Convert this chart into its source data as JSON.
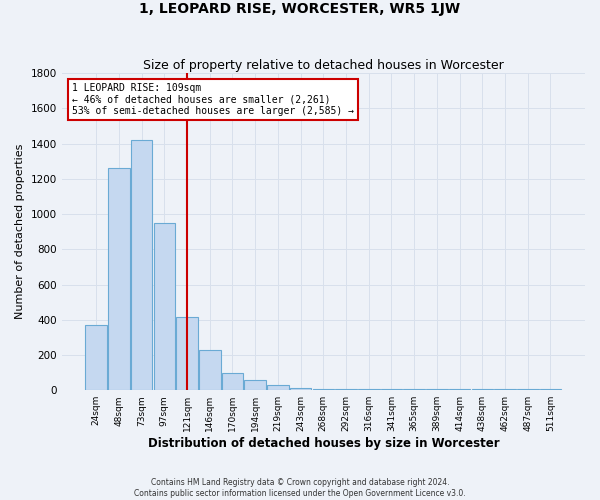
{
  "title": "1, LEOPARD RISE, WORCESTER, WR5 1JW",
  "subtitle": "Size of property relative to detached houses in Worcester",
  "xlabel": "Distribution of detached houses by size in Worcester",
  "ylabel": "Number of detached properties",
  "footnote": "Contains HM Land Registry data © Crown copyright and database right 2024.\nContains public sector information licensed under the Open Government Licence v3.0.",
  "categories": [
    "24sqm",
    "48sqm",
    "73sqm",
    "97sqm",
    "121sqm",
    "146sqm",
    "170sqm",
    "194sqm",
    "219sqm",
    "243sqm",
    "268sqm",
    "292sqm",
    "316sqm",
    "341sqm",
    "365sqm",
    "389sqm",
    "414sqm",
    "438sqm",
    "462sqm",
    "487sqm",
    "511sqm"
  ],
  "values": [
    370,
    1260,
    1420,
    950,
    415,
    230,
    100,
    60,
    30,
    12,
    5,
    5,
    5,
    5,
    5,
    5,
    5,
    5,
    5,
    5,
    5
  ],
  "bar_color": "#c5d8f0",
  "bar_edge_color": "#6aaad4",
  "marker_bin_index": 4,
  "annotation_title": "1 LEOPARD RISE: 109sqm",
  "annotation_line1": "← 46% of detached houses are smaller (2,261)",
  "annotation_line2": "53% of semi-detached houses are larger (2,585) →",
  "annotation_box_color": "#ffffff",
  "annotation_box_edge": "#cc0000",
  "vertical_line_color": "#cc0000",
  "ylim": [
    0,
    1800
  ],
  "yticks": [
    0,
    200,
    400,
    600,
    800,
    1000,
    1200,
    1400,
    1600,
    1800
  ],
  "background_color": "#eef2f8",
  "grid_color": "#d8e0ec",
  "title_fontsize": 10,
  "subtitle_fontsize": 9,
  "xlabel_fontsize": 8.5,
  "ylabel_fontsize": 8
}
